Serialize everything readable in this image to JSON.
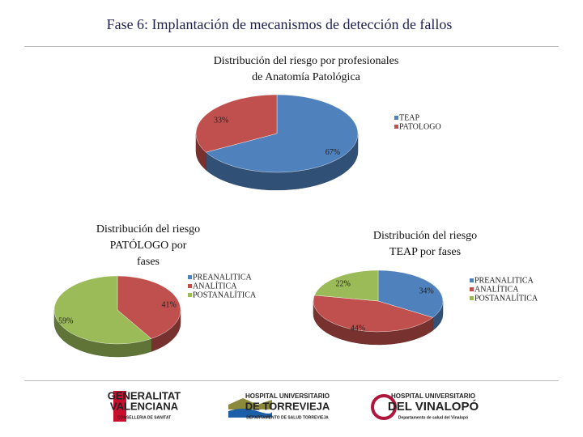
{
  "header": {
    "title": "Fase 6: Implantación de mecanismos de detección de fallos"
  },
  "chart_data": [
    {
      "type": "pie",
      "title": "Distribución del riesgo por profesionales\nde Anatomía Patológica",
      "categories": [
        "TEAP",
        "PATOLOGO"
      ],
      "values": [
        67,
        33
      ],
      "value_labels": [
        "67%",
        "33%"
      ],
      "colors": [
        "#4f81bd",
        "#c0504d"
      ]
    },
    {
      "type": "pie",
      "title": "Distribución del riesgo\nPATÓLOGO por\nfases",
      "categories": [
        "PREANALITICA",
        "ANALÍTICA",
        "POSTANALÍTICA"
      ],
      "values": [
        0,
        41,
        59
      ],
      "value_labels": [
        null,
        "41%",
        "59%"
      ],
      "colors": [
        "#4f81bd",
        "#c0504d",
        "#9bbb59"
      ]
    },
    {
      "type": "pie",
      "title": "Distribución del riesgo\nTEAP por fases",
      "categories": [
        "PREANALITICA",
        "ANALÍTICA",
        "POSTANALÍTICA"
      ],
      "values": [
        34,
        44,
        22
      ],
      "value_labels": [
        "34%",
        "44%",
        "22%"
      ],
      "colors": [
        "#4f81bd",
        "#c0504d",
        "#9bbb59"
      ]
    }
  ],
  "logos": [
    {
      "lines": [
        "GENERALITAT",
        "VALENCIANA",
        "CONSELLERIA DE SANITAT"
      ]
    },
    {
      "lines": [
        "HOSPITAL UNIVERSITARIO",
        "DE TORREVIEJA",
        "DEPARTAMENTO DE SALUD TORREVIEJA"
      ]
    },
    {
      "lines": [
        "HOSPITAL UNIVERSITARIO",
        "DEL VINALOPÓ",
        "Departamento de salud del Vinalopó"
      ]
    }
  ]
}
